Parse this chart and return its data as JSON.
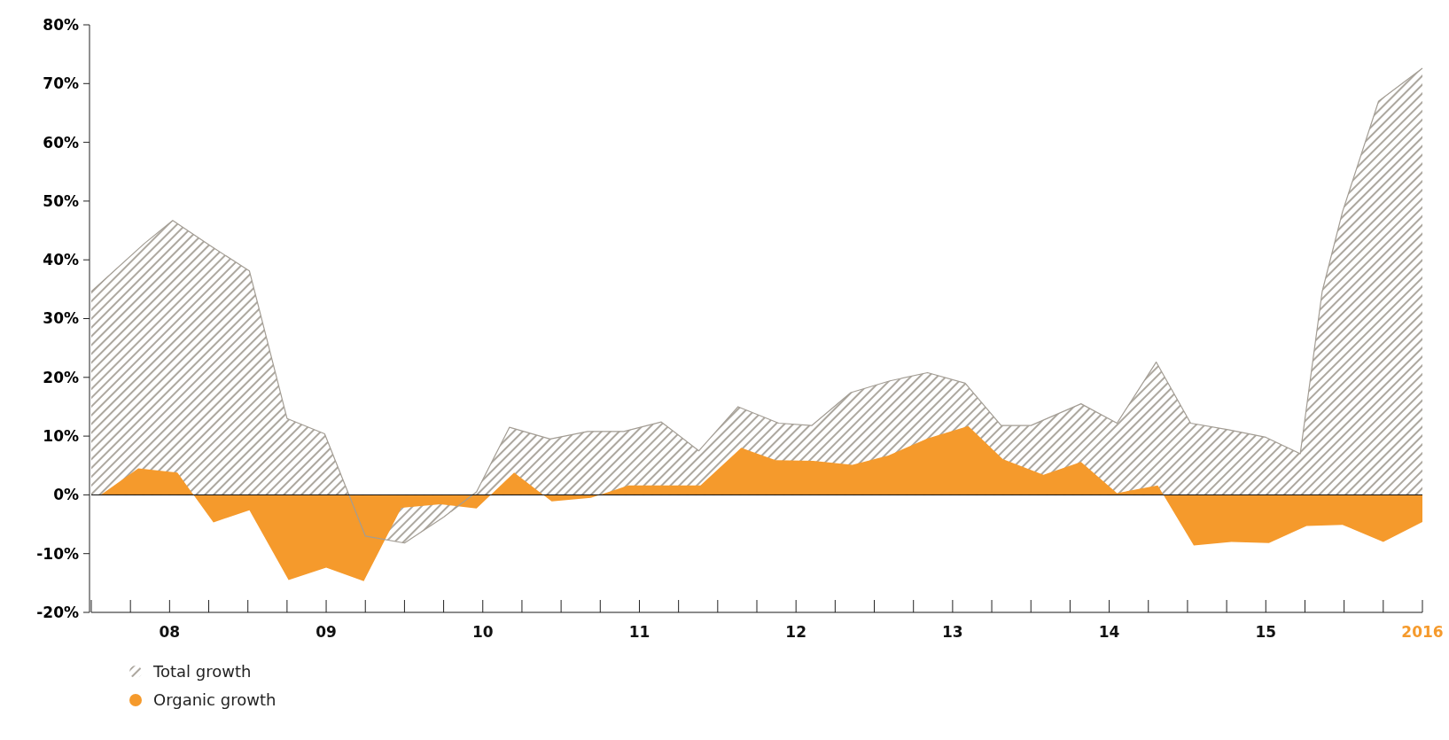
{
  "chart_data": {
    "type": "area",
    "xlim": [
      2007.5,
      2016
    ],
    "ylim": [
      -20,
      80
    ],
    "xticks": [
      {
        "value": 2007.5,
        "label": null
      },
      {
        "value": 2007.75,
        "label": null
      },
      {
        "value": 2008,
        "label": "08"
      },
      {
        "value": 2008.25,
        "label": null
      },
      {
        "value": 2008.5,
        "label": null
      },
      {
        "value": 2008.75,
        "label": null
      },
      {
        "value": 2009,
        "label": "09"
      },
      {
        "value": 2009.25,
        "label": null
      },
      {
        "value": 2009.5,
        "label": null
      },
      {
        "value": 2009.75,
        "label": null
      },
      {
        "value": 2010,
        "label": "10"
      },
      {
        "value": 2010.25,
        "label": null
      },
      {
        "value": 2010.5,
        "label": null
      },
      {
        "value": 2010.75,
        "label": null
      },
      {
        "value": 2011,
        "label": "11"
      },
      {
        "value": 2011.25,
        "label": null
      },
      {
        "value": 2011.5,
        "label": null
      },
      {
        "value": 2011.75,
        "label": null
      },
      {
        "value": 2012,
        "label": "12"
      },
      {
        "value": 2012.25,
        "label": null
      },
      {
        "value": 2012.5,
        "label": null
      },
      {
        "value": 2012.75,
        "label": null
      },
      {
        "value": 2013,
        "label": "13"
      },
      {
        "value": 2013.25,
        "label": null
      },
      {
        "value": 2013.5,
        "label": null
      },
      {
        "value": 2013.75,
        "label": null
      },
      {
        "value": 2014,
        "label": "14"
      },
      {
        "value": 2014.25,
        "label": null
      },
      {
        "value": 2014.5,
        "label": null
      },
      {
        "value": 2014.75,
        "label": null
      },
      {
        "value": 2015,
        "label": "15"
      },
      {
        "value": 2015.25,
        "label": null
      },
      {
        "value": 2015.5,
        "label": null
      },
      {
        "value": 2015.75,
        "label": null
      },
      {
        "value": 2016,
        "label": "2016"
      }
    ],
    "yticks": [
      {
        "value": -20,
        "label": "-20%"
      },
      {
        "value": -10,
        "label": "-10%"
      },
      {
        "value": 0,
        "label": "0%"
      },
      {
        "value": 10,
        "label": "10%"
      },
      {
        "value": 20,
        "label": "20%"
      },
      {
        "value": 30,
        "label": "30%"
      },
      {
        "value": 40,
        "label": "40%"
      },
      {
        "value": 50,
        "label": "50%"
      },
      {
        "value": 60,
        "label": "60%"
      },
      {
        "value": 70,
        "label": "70%"
      },
      {
        "value": 80,
        "label": "80%"
      }
    ],
    "legend": "bottom left",
    "grid": false,
    "ref_lines": [
      {
        "axis": "y",
        "value": 0,
        "color": "#000000"
      }
    ],
    "series": [
      {
        "name": "Total growth",
        "color": "#a39d94",
        "x": [
          2007.5,
          2007.84,
          2008.02,
          2008.26,
          2008.51,
          2008.75,
          2008.99,
          2009.25,
          2009.5,
          2009.75,
          2009.96,
          2010.17,
          2010.43,
          2010.67,
          2010.9,
          2011.14,
          2011.38,
          2011.63,
          2011.89,
          2012.1,
          2012.35,
          2012.6,
          2012.84,
          2013.08,
          2013.31,
          2013.5,
          2013.82,
          2014.05,
          2014.3,
          2014.52,
          2014.76,
          2015,
          2015.22,
          2015.36,
          2015.49,
          2015.72,
          2016
        ],
        "values": [
          34.6,
          42.8,
          46.7,
          42.4,
          38.1,
          13,
          10.4,
          -7,
          -8.2,
          -3.8,
          0.5,
          11.5,
          9.5,
          10.8,
          10.8,
          12.4,
          7.5,
          15,
          12.2,
          11.8,
          17.4,
          19.4,
          20.8,
          19,
          11.8,
          11.8,
          15.5,
          12.2,
          22.6,
          12.2,
          11.1,
          9.8,
          7,
          34.6,
          48.2,
          67,
          72.6
        ]
      },
      {
        "name": "Organic growth",
        "color": "#f59a2c",
        "x": [
          2007.56,
          2007.8,
          2008.05,
          2008.28,
          2008.51,
          2008.76,
          2009,
          2009.24,
          2009.48,
          2009.73,
          2009.96,
          2010.2,
          2010.44,
          2010.69,
          2010.93,
          2011.39,
          2011.65,
          2011.87,
          2012.11,
          2012.36,
          2012.59,
          2012.84,
          2013.1,
          2013.32,
          2013.58,
          2013.82,
          2014.05,
          2014.31,
          2014.54,
          2014.78,
          2015.02,
          2015.26,
          2015.49,
          2015.75,
          2016
        ],
        "values": [
          0,
          4.5,
          3.8,
          -4.7,
          -2.6,
          -14.5,
          -12.4,
          -14.7,
          -2.2,
          -1.6,
          -2.3,
          3.8,
          -1.1,
          -0.5,
          1.6,
          1.6,
          8,
          5.9,
          5.8,
          5.1,
          6.7,
          9.6,
          11.7,
          6.1,
          3.4,
          5.6,
          0.3,
          1.6,
          -8.6,
          -8,
          -8.2,
          -5.3,
          -5.1,
          -8,
          -4.6
        ]
      }
    ]
  }
}
